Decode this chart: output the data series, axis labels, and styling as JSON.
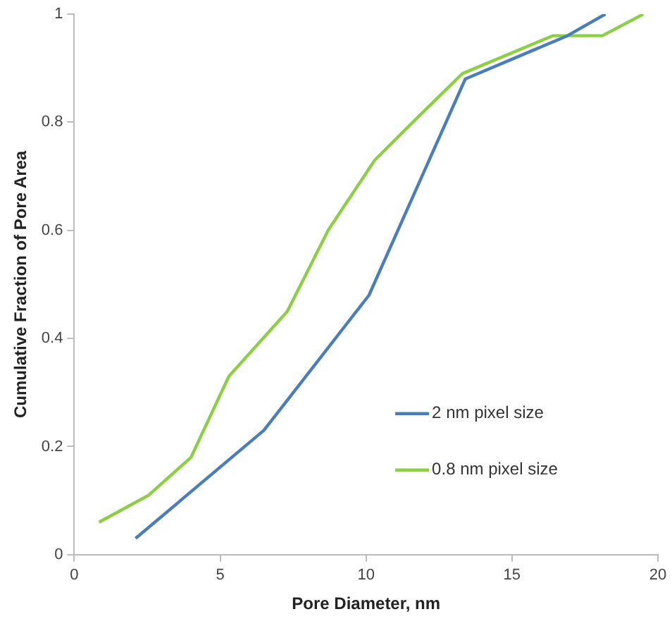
{
  "chart_data": {
    "type": "line",
    "xlabel": "Pore Diameter, nm",
    "ylabel": "Cumulative Fraction of Pore Area",
    "xlim": [
      0,
      20
    ],
    "xticks": [
      0,
      5,
      10,
      15,
      20
    ],
    "ylim": [
      0,
      1
    ],
    "yticks": [
      0,
      0.2,
      0.4,
      0.6,
      0.8,
      1
    ],
    "grid": false,
    "legend": "bottom right",
    "marker": "none",
    "line_style": "solid",
    "series": [
      {
        "name": "2 nm pixel size",
        "color": "#4a7ebb",
        "x": [
          2.1,
          6.5,
          10.1,
          13.4,
          16.9,
          18.2
        ],
        "values": [
          0.03,
          0.23,
          0.48,
          0.88,
          0.96,
          1.0
        ]
      },
      {
        "name": "0.8 nm pixel size",
        "color": "#8ccf45",
        "x": [
          0.85,
          2.55,
          4.0,
          5.3,
          7.3,
          8.7,
          10.3,
          11.6,
          13.3,
          16.4,
          18.1,
          19.5
        ],
        "values": [
          0.06,
          0.11,
          0.18,
          0.33,
          0.45,
          0.6,
          0.73,
          0.8,
          0.89,
          0.96,
          0.96,
          1.0
        ]
      }
    ]
  }
}
